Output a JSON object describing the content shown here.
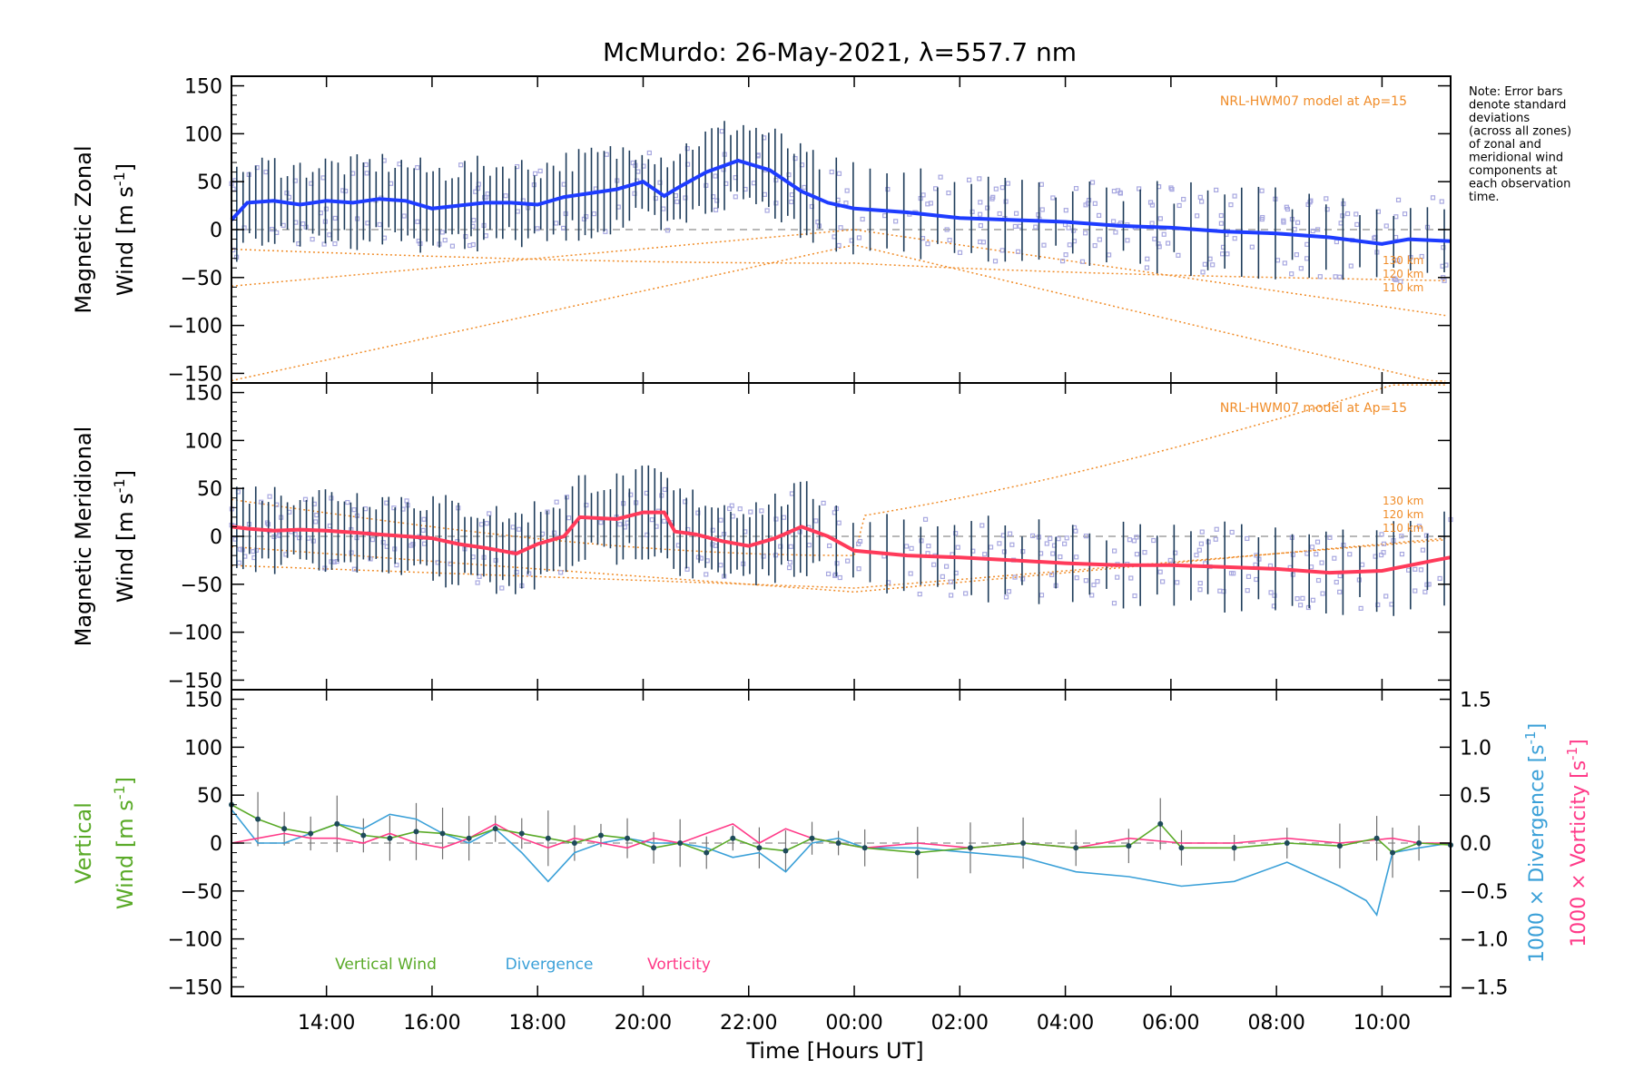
{
  "title": "McMurdo: 26-May-2021, λ=557.7 nm",
  "note_lines": [
    "Note: Error bars",
    "denote standard",
    "deviations",
    "(across all zones)",
    "of zonal and",
    "meridional wind",
    "components at",
    "each observation",
    "time."
  ],
  "colors": {
    "zonal": "#1e3cff",
    "meridional": "#ff3a5a",
    "vertical": "#5aaa28",
    "divergence": "#3aa0d8",
    "vorticity": "#ff3a88",
    "model": "#f08c28",
    "scatter": "#a8a8e0",
    "errbar": "#1e3c5a",
    "axis": "#000000",
    "zero": "#a0a0a0"
  },
  "panels": [
    {
      "name": "zonal",
      "ylabel_line1": "Magnetic Zonal",
      "ylabel_line2": "Wind [m s",
      "ylabel_sup": "-1",
      "ylabel_tail": "]",
      "model_label": "NRL-HWM07 model at Ap=15",
      "alt_labels": [
        "130 km",
        "120 km",
        "110 km"
      ],
      "yticks": [
        "150",
        "100",
        "50",
        "0",
        "−50",
        "−100",
        "−150"
      ]
    },
    {
      "name": "meridional",
      "ylabel_line1": "Magnetic Meridional",
      "ylabel_line2": "Wind [m s",
      "ylabel_sup": "-1",
      "ylabel_tail": "]",
      "model_label": "NRL-HWM07 model at Ap=15",
      "alt_labels": [
        "130 km",
        "120 km",
        "110 km"
      ],
      "yticks": [
        "150",
        "100",
        "50",
        "0",
        "−50",
        "−100",
        "−150"
      ]
    },
    {
      "name": "vertical",
      "ylabel_line1": "Vertical",
      "ylabel_line2": "Wind [m s",
      "ylabel_sup": "-1",
      "ylabel_tail": "]",
      "yticks": [
        "150",
        "100",
        "50",
        "0",
        "−50",
        "−100",
        "−150"
      ],
      "right_ticks": [
        "1.5",
        "1.0",
        "0.5",
        "0.0",
        "−0.5",
        "−1.0",
        "−1.5"
      ],
      "right_label_div": "1000 × Divergence [s",
      "right_label_vort": "1000 × Vorticity [s",
      "right_sup": "-1",
      "right_tail": "]",
      "legend": [
        "Vertical Wind",
        "Divergence",
        "Vorticity"
      ]
    }
  ],
  "xaxis": {
    "label": "Time [Hours UT]",
    "ticks": [
      "14:00",
      "16:00",
      "18:00",
      "20:00",
      "22:00",
      "00:00",
      "02:00",
      "04:00",
      "06:00",
      "08:00",
      "10:00"
    ]
  },
  "chart_data": {
    "type": "line",
    "x_units": "hours UT (continuous from 12:10 on 26-May-2021)",
    "xlim": [
      12.2,
      35.3
    ],
    "series": [
      {
        "name": "Magnetic Zonal Wind (m/s)",
        "ylim": [
          -160,
          160
        ],
        "x": [
          12.2,
          12.5,
          13.0,
          13.5,
          14.0,
          14.5,
          15.0,
          15.5,
          16.0,
          16.5,
          17.0,
          17.5,
          18.0,
          18.5,
          19.0,
          19.5,
          20.0,
          20.4,
          20.7,
          21.2,
          21.8,
          22.4,
          23.0,
          23.5,
          24.0,
          25.0,
          26.0,
          27.0,
          28.0,
          29.0,
          30.0,
          31.0,
          32.0,
          33.0,
          34.0,
          34.5,
          35.3
        ],
        "y": [
          10,
          28,
          30,
          26,
          30,
          28,
          32,
          30,
          22,
          25,
          28,
          28,
          26,
          34,
          38,
          42,
          50,
          35,
          45,
          60,
          72,
          62,
          40,
          28,
          22,
          18,
          12,
          10,
          8,
          4,
          2,
          -2,
          -4,
          -8,
          -15,
          -10,
          -12
        ]
      },
      {
        "name": "Magnetic Meridional Wind (m/s)",
        "ylim": [
          -160,
          160
        ],
        "x": [
          12.2,
          12.5,
          13.0,
          13.5,
          14.0,
          14.5,
          15.0,
          15.5,
          16.0,
          16.5,
          17.0,
          17.3,
          17.6,
          18.0,
          18.5,
          18.8,
          19.5,
          20.0,
          20.4,
          20.6,
          21.0,
          21.5,
          22.0,
          22.5,
          23.0,
          23.5,
          24.0,
          25.0,
          26.0,
          27.0,
          28.0,
          29.0,
          30.0,
          31.0,
          32.0,
          33.0,
          34.0,
          35.0,
          35.3
        ],
        "y": [
          10,
          8,
          6,
          7,
          6,
          4,
          2,
          0,
          -2,
          -8,
          -12,
          -15,
          -18,
          -8,
          0,
          20,
          18,
          25,
          25,
          5,
          2,
          -5,
          -10,
          -2,
          10,
          0,
          -15,
          -20,
          -22,
          -25,
          -28,
          -30,
          -30,
          -32,
          -34,
          -38,
          -36,
          -25,
          -22
        ]
      },
      {
        "name": "Vertical Wind (m/s)",
        "ylim": [
          -160,
          160
        ],
        "x": [
          12.2,
          12.7,
          13.2,
          13.7,
          14.2,
          14.7,
          15.2,
          15.7,
          16.2,
          16.7,
          17.2,
          17.7,
          18.2,
          18.7,
          19.2,
          19.7,
          20.2,
          20.7,
          21.2,
          21.7,
          22.2,
          22.7,
          23.2,
          23.7,
          24.2,
          25.2,
          26.2,
          27.2,
          28.2,
          29.2,
          29.8,
          30.2,
          31.2,
          32.2,
          33.2,
          33.9,
          34.2,
          34.7,
          35.3
        ],
        "y": [
          40,
          25,
          15,
          10,
          20,
          8,
          5,
          12,
          10,
          5,
          15,
          10,
          5,
          0,
          8,
          5,
          -5,
          0,
          -10,
          5,
          -5,
          -8,
          5,
          0,
          -5,
          -10,
          -5,
          0,
          -5,
          -3,
          20,
          -5,
          -5,
          0,
          -3,
          5,
          -10,
          0,
          -2
        ]
      },
      {
        "name": "Divergence (1000 × s^-1)",
        "ylim": [
          -1.6,
          1.6
        ],
        "x": [
          12.2,
          12.7,
          13.2,
          13.7,
          14.2,
          14.7,
          15.2,
          15.7,
          16.2,
          16.7,
          17.2,
          17.7,
          18.2,
          18.7,
          19.2,
          19.7,
          20.2,
          20.7,
          21.2,
          21.7,
          22.2,
          22.7,
          23.2,
          23.7,
          24.2,
          25.2,
          26.2,
          27.2,
          28.2,
          29.2,
          30.2,
          31.2,
          32.2,
          33.2,
          33.7,
          33.9,
          34.2,
          34.7,
          35.3
        ],
        "y": [
          0.35,
          0.0,
          0.0,
          0.1,
          0.2,
          0.15,
          0.3,
          0.25,
          0.1,
          0.0,
          0.15,
          -0.1,
          -0.4,
          -0.1,
          0.0,
          0.05,
          0.0,
          0.0,
          -0.05,
          -0.15,
          -0.1,
          -0.3,
          0.0,
          0.05,
          -0.05,
          -0.05,
          -0.1,
          -0.15,
          -0.3,
          -0.35,
          -0.45,
          -0.4,
          -0.2,
          -0.45,
          -0.6,
          -0.75,
          -0.1,
          -0.05,
          0.0
        ]
      },
      {
        "name": "Vorticity (1000 × s^-1)",
        "ylim": [
          -1.6,
          1.6
        ],
        "x": [
          12.2,
          12.7,
          13.2,
          13.7,
          14.2,
          14.7,
          15.2,
          15.7,
          16.2,
          16.7,
          17.2,
          17.7,
          18.2,
          18.7,
          19.2,
          19.7,
          20.2,
          20.7,
          21.2,
          21.7,
          22.2,
          22.7,
          23.2,
          23.7,
          24.2,
          25.2,
          26.2,
          27.2,
          28.2,
          29.2,
          30.2,
          31.2,
          32.2,
          33.2,
          34.2,
          34.7,
          35.3
        ],
        "y": [
          0.0,
          0.05,
          0.1,
          0.05,
          0.05,
          0.0,
          0.1,
          0.0,
          -0.05,
          0.05,
          0.2,
          0.05,
          -0.05,
          0.05,
          0.0,
          -0.05,
          0.05,
          0.0,
          0.1,
          0.2,
          0.0,
          0.15,
          0.05,
          0.0,
          -0.05,
          0.0,
          -0.05,
          0.0,
          -0.05,
          0.05,
          0.0,
          0.0,
          0.05,
          0.0,
          0.05,
          0.0,
          0.0
        ]
      }
    ]
  }
}
